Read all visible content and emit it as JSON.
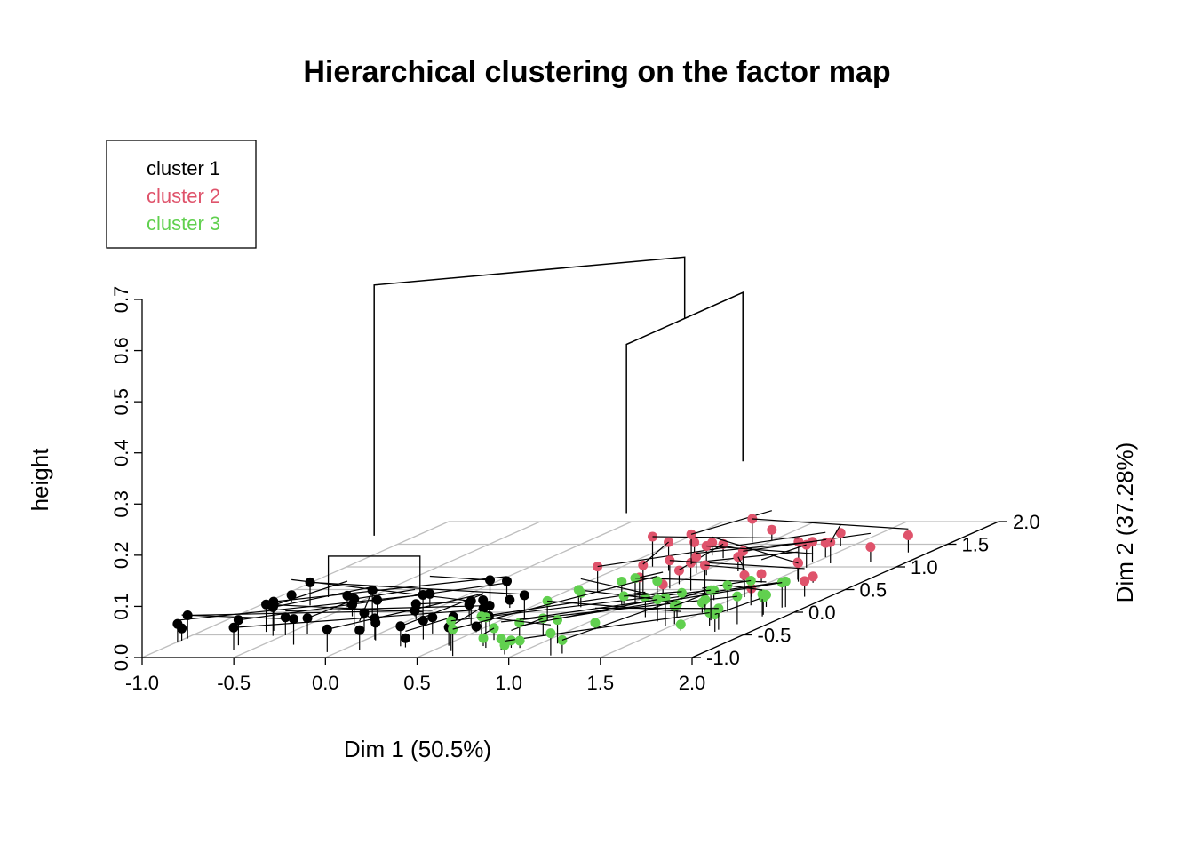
{
  "chart_data": {
    "type": "scatter",
    "subtype": "3d-dendrogram-on-factor-map",
    "title": "Hierarchical clustering on the factor map",
    "xlabel": "Dim 1 (50.5%)",
    "ylabel": "Dim 2 (37.28%)",
    "zlabel": "height",
    "xlim": [
      -1.0,
      2.0
    ],
    "ylim": [
      -1.0,
      2.0
    ],
    "zlim": [
      0.0,
      0.7
    ],
    "x_ticks": [
      "-1.0",
      "-0.5",
      "0.0",
      "0.5",
      "1.0",
      "1.5",
      "2.0"
    ],
    "y_ticks": [
      "-1.0",
      "-0.5",
      "0.0",
      "0.5",
      "1.0",
      "1.5",
      "2.0"
    ],
    "z_ticks": [
      "0.0",
      "0.1",
      "0.2",
      "0.3",
      "0.4",
      "0.5",
      "0.6",
      "0.7"
    ],
    "grid": true,
    "legend": {
      "position": "top-left",
      "entries": [
        {
          "label": "cluster 1",
          "color": "#000000"
        },
        {
          "label": "cluster 2",
          "color": "#DF536B"
        },
        {
          "label": "cluster 3",
          "color": "#61D04F"
        }
      ]
    },
    "clusters": [
      {
        "name": "cluster 1",
        "color": "#000000",
        "x_range": [
          -1.0,
          0.6
        ],
        "y_range": [
          -1.0,
          0.3
        ],
        "point_count": 45
      },
      {
        "name": "cluster 2",
        "color": "#DF536B",
        "x_range": [
          0.5,
          1.9
        ],
        "y_range": [
          0.3,
          1.6
        ],
        "point_count": 35
      },
      {
        "name": "cluster 3",
        "color": "#61D04F",
        "x_range": [
          0.6,
          1.9
        ],
        "y_range": [
          -1.0,
          0.4
        ],
        "point_count": 45
      }
    ],
    "merges": [
      {
        "between": [
          "cluster 1",
          "cluster 2+3"
        ],
        "height": 0.67
      },
      {
        "between": [
          "cluster 2",
          "cluster 3"
        ],
        "height": 0.55
      }
    ]
  }
}
